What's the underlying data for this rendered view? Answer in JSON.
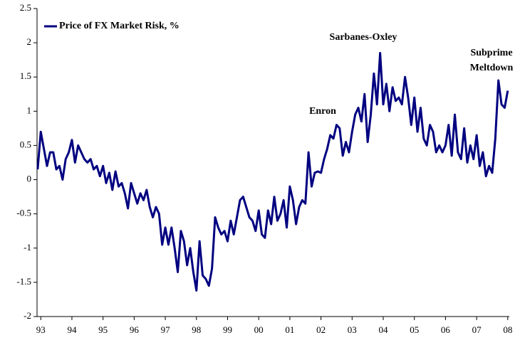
{
  "chart_data": {
    "type": "line",
    "annotations": [
      "Enron",
      "Sarbanes-Oxley",
      "Subprime Meltdown"
    ],
    "x": [
      1992.9,
      1993,
      1993.1,
      1993.2,
      1993.3,
      1993.4,
      1993.5,
      1993.6,
      1993.7,
      1993.8,
      1993.9,
      1994,
      1994.1,
      1994.2,
      1994.3,
      1994.4,
      1994.5,
      1994.6,
      1994.7,
      1994.8,
      1994.9,
      1995,
      1995.1,
      1995.2,
      1995.3,
      1995.4,
      1995.5,
      1995.6,
      1995.7,
      1995.8,
      1995.9,
      1996,
      1996.1,
      1996.2,
      1996.3,
      1996.4,
      1996.5,
      1996.6,
      1996.7,
      1996.8,
      1996.9,
      1997,
      1997.1,
      1997.2,
      1997.3,
      1997.4,
      1997.5,
      1997.6,
      1997.7,
      1997.8,
      1997.9,
      1998,
      1998.1,
      1998.2,
      1998.3,
      1998.4,
      1998.5,
      1998.6,
      1998.7,
      1998.8,
      1998.9,
      1999,
      1999.1,
      1999.2,
      1999.3,
      1999.4,
      1999.5,
      1999.6,
      1999.7,
      1999.8,
      1999.9,
      2000,
      2000.1,
      2000.2,
      2000.3,
      2000.4,
      2000.5,
      2000.6,
      2000.7,
      2000.8,
      2000.9,
      2001,
      2001.1,
      2001.2,
      2001.3,
      2001.4,
      2001.5,
      2001.6,
      2001.7,
      2001.8,
      2001.9,
      2002,
      2002.1,
      2002.2,
      2002.3,
      2002.4,
      2002.5,
      2002.6,
      2002.7,
      2002.8,
      2002.9,
      2003,
      2003.1,
      2003.2,
      2003.3,
      2003.4,
      2003.5,
      2003.6,
      2003.7,
      2003.8,
      2003.9,
      2004,
      2004.1,
      2004.2,
      2004.3,
      2004.4,
      2004.5,
      2004.6,
      2004.7,
      2004.8,
      2004.9,
      2005,
      2005.1,
      2005.2,
      2005.3,
      2005.4,
      2005.5,
      2005.6,
      2005.7,
      2005.8,
      2005.9,
      2006,
      2006.1,
      2006.2,
      2006.3,
      2006.4,
      2006.5,
      2006.6,
      2006.7,
      2006.8,
      2006.9,
      2007,
      2007.1,
      2007.2,
      2007.3,
      2007.4,
      2007.5,
      2007.6,
      2007.7,
      2007.8,
      2007.9,
      2008
    ],
    "series": [
      {
        "name": "Price of FX Market Risk, %",
        "color": "#000080",
        "values": [
          0.15,
          0.7,
          0.45,
          0.2,
          0.4,
          0.4,
          0.15,
          0.2,
          0.0,
          0.3,
          0.4,
          0.58,
          0.25,
          0.5,
          0.4,
          0.3,
          0.25,
          0.3,
          0.15,
          0.2,
          0.05,
          0.2,
          -0.05,
          0.1,
          -0.15,
          0.12,
          -0.1,
          -0.05,
          -0.2,
          -0.42,
          -0.05,
          -0.2,
          -0.35,
          -0.2,
          -0.3,
          -0.15,
          -0.4,
          -0.55,
          -0.4,
          -0.5,
          -0.95,
          -0.7,
          -0.95,
          -0.7,
          -1.0,
          -1.35,
          -0.75,
          -0.9,
          -1.25,
          -1.0,
          -1.35,
          -1.62,
          -0.9,
          -1.4,
          -1.45,
          -1.55,
          -1.3,
          -0.55,
          -0.7,
          -0.8,
          -0.75,
          -0.9,
          -0.6,
          -0.8,
          -0.55,
          -0.3,
          -0.25,
          -0.4,
          -0.55,
          -0.6,
          -0.75,
          -0.45,
          -0.8,
          -0.85,
          -0.45,
          -0.65,
          -0.25,
          -0.6,
          -0.5,
          -0.3,
          -0.7,
          -0.1,
          -0.3,
          -0.65,
          -0.4,
          -0.3,
          -0.35,
          0.4,
          -0.1,
          0.1,
          0.12,
          0.1,
          0.3,
          0.45,
          0.65,
          0.6,
          0.8,
          0.75,
          0.35,
          0.55,
          0.4,
          0.7,
          0.95,
          1.05,
          0.85,
          1.25,
          0.55,
          0.95,
          1.55,
          1.1,
          1.85,
          1.1,
          1.4,
          1.0,
          1.35,
          1.15,
          1.2,
          1.1,
          1.5,
          1.2,
          0.8,
          1.2,
          0.7,
          1.05,
          0.6,
          0.5,
          0.8,
          0.7,
          0.4,
          0.5,
          0.4,
          0.5,
          0.8,
          0.35,
          0.95,
          0.4,
          0.3,
          0.75,
          0.25,
          0.5,
          0.3,
          0.65,
          0.2,
          0.4,
          0.05,
          0.2,
          0.1,
          0.6,
          1.45,
          1.1,
          1.05,
          1.3
        ]
      }
    ],
    "xlim": [
      1992.88,
      2008.05
    ],
    "xticks": [
      {
        "value": 1993,
        "label": "93"
      },
      {
        "value": 1994,
        "label": "94"
      },
      {
        "value": 1995,
        "label": "95"
      },
      {
        "value": 1996,
        "label": "96"
      },
      {
        "value": 1997,
        "label": "97"
      },
      {
        "value": 1998,
        "label": "98"
      },
      {
        "value": 1999,
        "label": "99"
      },
      {
        "value": 2000,
        "label": "00"
      },
      {
        "value": 2001,
        "label": "01"
      },
      {
        "value": 2002,
        "label": "02"
      },
      {
        "value": 2003,
        "label": "03"
      },
      {
        "value": 2004,
        "label": "04"
      },
      {
        "value": 2005,
        "label": "05"
      },
      {
        "value": 2006,
        "label": "06"
      },
      {
        "value": 2007,
        "label": "07"
      },
      {
        "value": 2008,
        "label": "08"
      }
    ],
    "ylim": [
      -2,
      2.5
    ],
    "yticks": [
      -2,
      -1.5,
      -1,
      -0.5,
      0,
      0.5,
      1,
      1.5,
      2,
      2.5
    ],
    "grid": false,
    "legend": "top-left"
  }
}
